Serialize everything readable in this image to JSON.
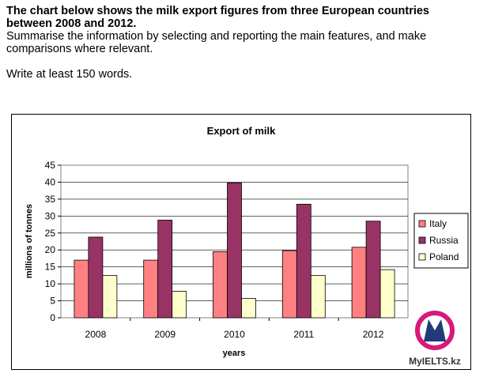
{
  "prompt": {
    "title_line1": "The chart below shows the milk export figures from three European countries",
    "title_line2": "between 2008 and 2012.",
    "instruction_line1": "Summarise the information by selecting and reporting the main features, and make",
    "instruction_line2": "comparisons where relevant.",
    "word_count": "Write at least 150 words."
  },
  "logo": {
    "text": "MyIELTS.kz",
    "colors": {
      "magenta": "#d6197a",
      "navy": "#1f3b7a"
    }
  },
  "chart_data": {
    "type": "bar",
    "title": "Export of milk",
    "xlabel": "years",
    "ylabel": "millions of tonnes",
    "categories": [
      "2008",
      "2009",
      "2010",
      "2011",
      "2012"
    ],
    "ylim": [
      0,
      45
    ],
    "yticks": [
      0,
      5,
      10,
      15,
      20,
      25,
      30,
      35,
      40,
      45
    ],
    "grid": true,
    "legend_position": "right",
    "series": [
      {
        "name": "Italy",
        "color": "#ff8080",
        "values": [
          17,
          17,
          19.5,
          19.8,
          20.8
        ]
      },
      {
        "name": "Russia",
        "color": "#993366",
        "values": [
          23.8,
          28.8,
          39.8,
          33.5,
          28.5
        ]
      },
      {
        "name": "Poland",
        "color": "#ffffcc",
        "values": [
          12.5,
          7.8,
          5.7,
          12.5,
          14.2
        ]
      }
    ]
  }
}
